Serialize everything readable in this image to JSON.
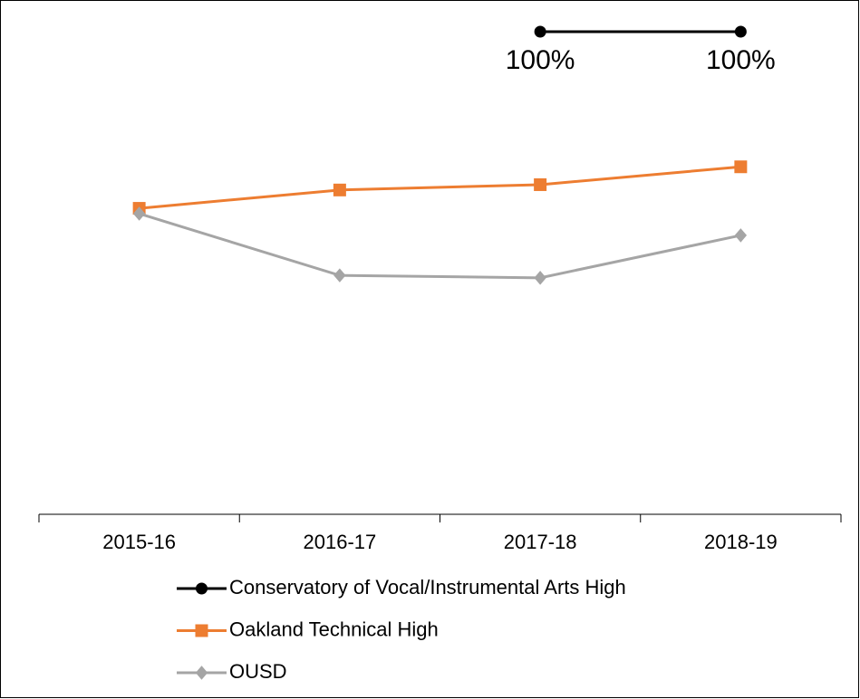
{
  "chart_data": {
    "type": "line",
    "categories": [
      "2015-16",
      "2016-17",
      "2017-18",
      "2018-19"
    ],
    "ylim": [
      0,
      100
    ],
    "legend": "bottom",
    "series": [
      {
        "name": "Conservatory of Vocal/Instrumental Arts High",
        "color": "#000000",
        "marker": "circle",
        "values": [
          null,
          null,
          100,
          100
        ],
        "value_labels": [
          null,
          null,
          "100%",
          "100%"
        ]
      },
      {
        "name": "Oakland Technical High",
        "color": "#ed7d31",
        "marker": "square",
        "values": [
          63.4,
          67.2,
          68.3,
          72.0
        ]
      },
      {
        "name": "OUSD",
        "color": "#a5a5a5",
        "marker": "diamond",
        "values": [
          62.3,
          49.5,
          49.0,
          57.8
        ]
      }
    ]
  }
}
